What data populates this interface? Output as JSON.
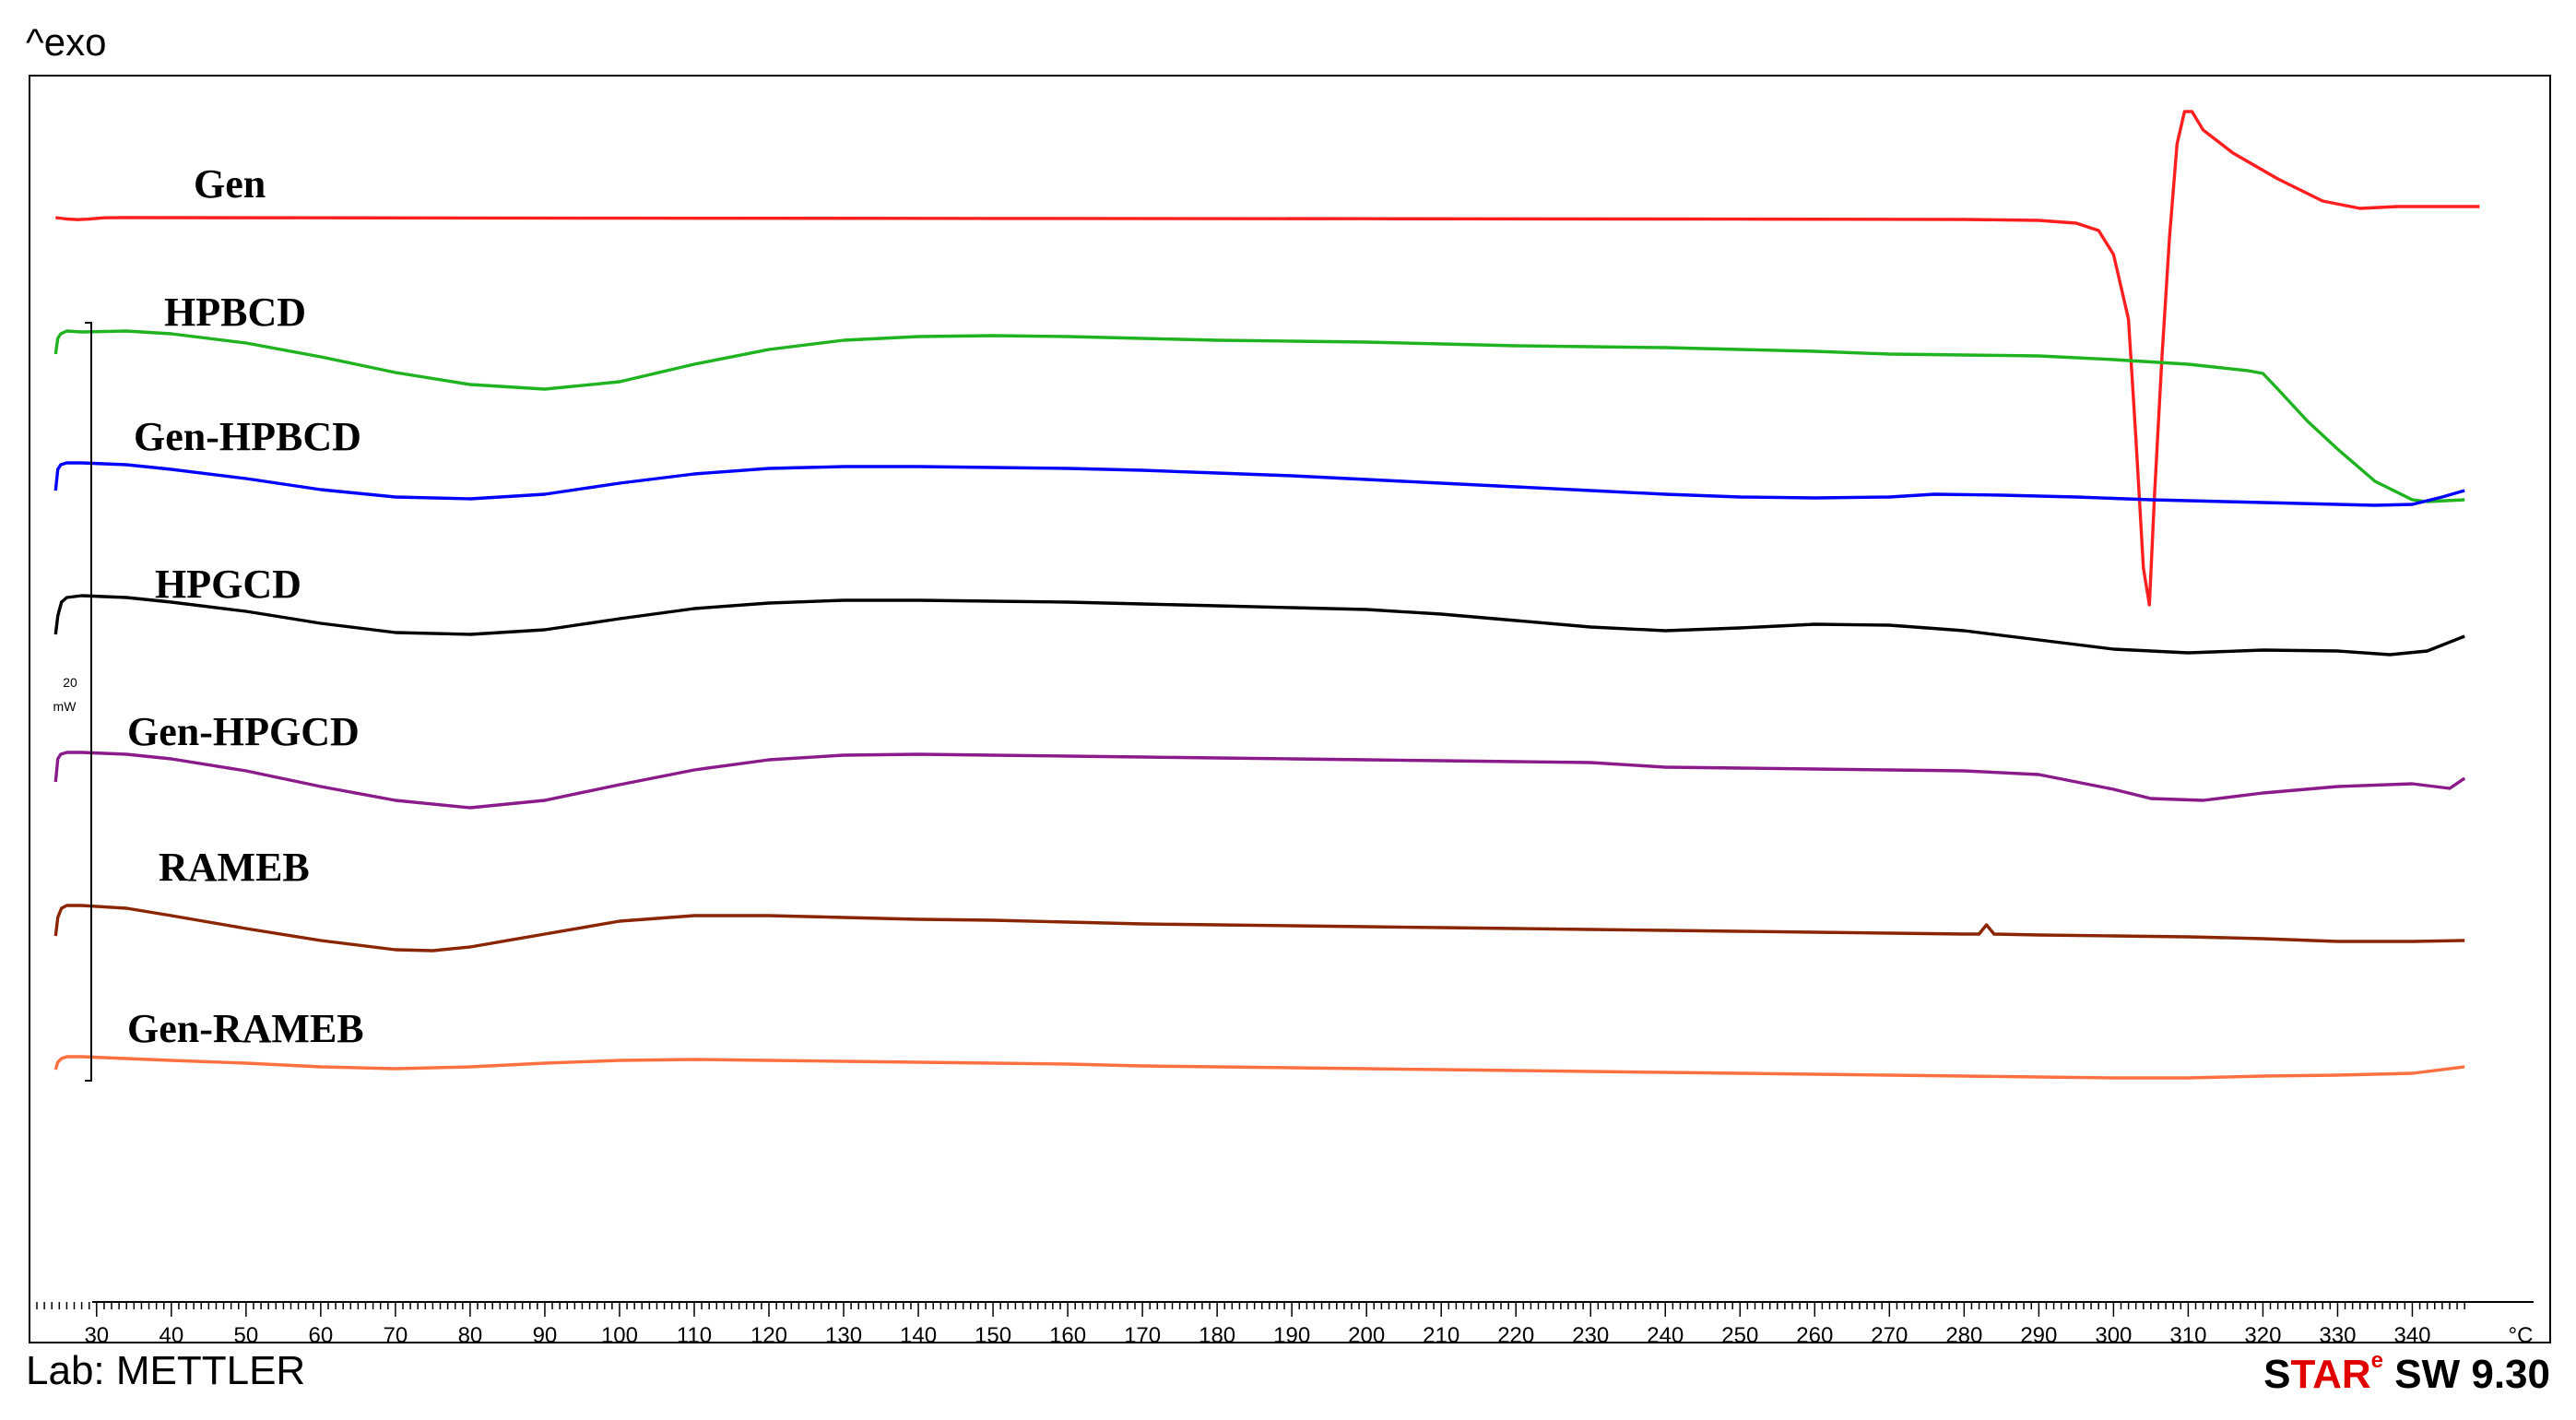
{
  "header": {
    "exo_label": "^exo"
  },
  "footer": {
    "lab_label": "Lab: METTLER",
    "software_prefix": "S",
    "software_red": "TAR",
    "software_sup": "e",
    "software_suffix": " SW 9.30"
  },
  "chart_data": {
    "type": "line",
    "xlabel": "°C",
    "xlim": [
      22,
      355
    ],
    "x_ticks": [
      30,
      40,
      50,
      60,
      70,
      80,
      90,
      100,
      110,
      120,
      130,
      140,
      150,
      160,
      170,
      180,
      190,
      200,
      210,
      220,
      230,
      240,
      250,
      260,
      270,
      280,
      290,
      300,
      310,
      320,
      330,
      340
    ],
    "x_unit_label": "°C",
    "y_scale": {
      "value": "20",
      "unit": "mW"
    },
    "grid": false,
    "legend": "inline labels",
    "series": [
      {
        "name": "Gen",
        "color": "#ff1f1f",
        "offset": 0,
        "points": [
          [
            24.5,
            0
          ],
          [
            26,
            -1.5
          ],
          [
            27.5,
            -2.2
          ],
          [
            29,
            -1.6
          ],
          [
            31,
            -0.2
          ],
          [
            33,
            0
          ],
          [
            60,
            -0.2
          ],
          [
            100,
            -0.6
          ],
          [
            150,
            -0.9
          ],
          [
            200,
            -1.2
          ],
          [
            250,
            -1.6
          ],
          [
            280,
            -2
          ],
          [
            290,
            -3
          ],
          [
            295,
            -6
          ],
          [
            298,
            -14
          ],
          [
            300,
            -40
          ],
          [
            302,
            -110
          ],
          [
            303,
            -240
          ],
          [
            304,
            -380
          ],
          [
            304.8,
            -420
          ],
          [
            305.5,
            -300
          ],
          [
            306.5,
            -150
          ],
          [
            307.5,
            -20
          ],
          [
            308.5,
            80
          ],
          [
            309.5,
            115
          ],
          [
            310.5,
            115
          ],
          [
            312,
            95
          ],
          [
            316,
            70
          ],
          [
            322,
            42
          ],
          [
            328,
            18
          ],
          [
            333,
            10
          ],
          [
            338,
            12
          ],
          [
            345,
            12
          ],
          [
            349,
            12
          ]
        ]
      },
      {
        "name": "HPBCD",
        "color": "#1fb31f",
        "offset": 132,
        "points": [
          [
            24.5,
            -22
          ],
          [
            24.8,
            -5
          ],
          [
            25.2,
            0
          ],
          [
            26,
            3
          ],
          [
            28,
            2
          ],
          [
            34,
            3
          ],
          [
            40,
            0
          ],
          [
            50,
            -10
          ],
          [
            60,
            -25
          ],
          [
            70,
            -42
          ],
          [
            80,
            -55
          ],
          [
            90,
            -60
          ],
          [
            100,
            -52
          ],
          [
            110,
            -33
          ],
          [
            120,
            -17
          ],
          [
            130,
            -7
          ],
          [
            140,
            -3
          ],
          [
            150,
            -2
          ],
          [
            160,
            -3
          ],
          [
            170,
            -5
          ],
          [
            180,
            -7
          ],
          [
            190,
            -8
          ],
          [
            200,
            -9
          ],
          [
            210,
            -11
          ],
          [
            220,
            -13
          ],
          [
            230,
            -14
          ],
          [
            240,
            -15
          ],
          [
            250,
            -17
          ],
          [
            260,
            -19
          ],
          [
            270,
            -22
          ],
          [
            280,
            -23
          ],
          [
            290,
            -24
          ],
          [
            300,
            -28
          ],
          [
            310,
            -33
          ],
          [
            318,
            -40
          ],
          [
            320,
            -43
          ],
          [
            322,
            -60
          ],
          [
            326,
            -95
          ],
          [
            330,
            -125
          ],
          [
            335,
            -160
          ],
          [
            340,
            -180
          ],
          [
            342,
            -182
          ],
          [
            347,
            -180
          ]
        ]
      },
      {
        "name": "Gen-HPBCD",
        "color": "#0000ff",
        "offset": 288,
        "points": [
          [
            24.5,
            -28
          ],
          [
            24.8,
            -5
          ],
          [
            25.2,
            0
          ],
          [
            26,
            2
          ],
          [
            28,
            2
          ],
          [
            34,
            0
          ],
          [
            40,
            -5
          ],
          [
            50,
            -15
          ],
          [
            60,
            -27
          ],
          [
            70,
            -35
          ],
          [
            80,
            -37
          ],
          [
            90,
            -32
          ],
          [
            100,
            -20
          ],
          [
            110,
            -10
          ],
          [
            120,
            -4
          ],
          [
            130,
            -2
          ],
          [
            140,
            -2
          ],
          [
            150,
            -3
          ],
          [
            160,
            -4
          ],
          [
            170,
            -6
          ],
          [
            180,
            -9
          ],
          [
            190,
            -12
          ],
          [
            200,
            -16
          ],
          [
            210,
            -20
          ],
          [
            220,
            -24
          ],
          [
            230,
            -28
          ],
          [
            240,
            -32
          ],
          [
            250,
            -35
          ],
          [
            260,
            -36
          ],
          [
            270,
            -35
          ],
          [
            276,
            -32
          ],
          [
            285,
            -33
          ],
          [
            295,
            -35
          ],
          [
            305,
            -38
          ],
          [
            315,
            -40
          ],
          [
            325,
            -42
          ],
          [
            335,
            -44
          ],
          [
            340,
            -43
          ],
          [
            344,
            -35
          ],
          [
            347,
            -28
          ]
        ]
      },
      {
        "name": "HPGCD",
        "color": "#000000",
        "offset": 425,
        "points": [
          [
            24.5,
            -40
          ],
          [
            24.8,
            -20
          ],
          [
            25.3,
            -5
          ],
          [
            26,
            0
          ],
          [
            28,
            2
          ],
          [
            34,
            0
          ],
          [
            40,
            -5
          ],
          [
            50,
            -15
          ],
          [
            60,
            -28
          ],
          [
            70,
            -38
          ],
          [
            80,
            -40
          ],
          [
            90,
            -35
          ],
          [
            100,
            -23
          ],
          [
            110,
            -12
          ],
          [
            120,
            -6
          ],
          [
            130,
            -3
          ],
          [
            140,
            -3
          ],
          [
            150,
            -4
          ],
          [
            160,
            -5
          ],
          [
            170,
            -7
          ],
          [
            180,
            -9
          ],
          [
            190,
            -11
          ],
          [
            200,
            -13
          ],
          [
            210,
            -18
          ],
          [
            220,
            -25
          ],
          [
            230,
            -32
          ],
          [
            240,
            -36
          ],
          [
            250,
            -33
          ],
          [
            260,
            -29
          ],
          [
            270,
            -30
          ],
          [
            280,
            -36
          ],
          [
            290,
            -46
          ],
          [
            300,
            -56
          ],
          [
            310,
            -60
          ],
          [
            320,
            -57
          ],
          [
            330,
            -58
          ],
          [
            337,
            -62
          ],
          [
            342,
            -58
          ],
          [
            347,
            -42
          ]
        ]
      },
      {
        "name": "Gen-HPGCD",
        "color": "#8b1a8b",
        "offset": 598,
        "points": [
          [
            24.5,
            -30
          ],
          [
            24.8,
            -5
          ],
          [
            25.2,
            0
          ],
          [
            26,
            2
          ],
          [
            28,
            2
          ],
          [
            34,
            0
          ],
          [
            40,
            -5
          ],
          [
            50,
            -18
          ],
          [
            60,
            -35
          ],
          [
            70,
            -50
          ],
          [
            80,
            -58
          ],
          [
            90,
            -50
          ],
          [
            100,
            -33
          ],
          [
            110,
            -17
          ],
          [
            120,
            -6
          ],
          [
            130,
            -1
          ],
          [
            140,
            0
          ],
          [
            150,
            -1
          ],
          [
            160,
            -2
          ],
          [
            170,
            -3
          ],
          [
            180,
            -4
          ],
          [
            190,
            -5
          ],
          [
            200,
            -6
          ],
          [
            210,
            -7
          ],
          [
            220,
            -8
          ],
          [
            230,
            -9
          ],
          [
            240,
            -14
          ],
          [
            250,
            -15
          ],
          [
            260,
            -16
          ],
          [
            270,
            -17
          ],
          [
            280,
            -18
          ],
          [
            290,
            -22
          ],
          [
            300,
            -38
          ],
          [
            305,
            -48
          ],
          [
            312,
            -50
          ],
          [
            320,
            -42
          ],
          [
            330,
            -35
          ],
          [
            340,
            -32
          ],
          [
            345,
            -37
          ],
          [
            347,
            -26
          ]
        ]
      },
      {
        "name": "RAMEB",
        "color": "#8b2500",
        "offset": 790,
        "points": [
          [
            24.5,
            -30
          ],
          [
            24.8,
            -10
          ],
          [
            25.3,
            0
          ],
          [
            26,
            3
          ],
          [
            28,
            3
          ],
          [
            34,
            0
          ],
          [
            40,
            -8
          ],
          [
            50,
            -22
          ],
          [
            60,
            -35
          ],
          [
            70,
            -45
          ],
          [
            75,
            -46
          ],
          [
            80,
            -42
          ],
          [
            90,
            -28
          ],
          [
            100,
            -14
          ],
          [
            110,
            -8
          ],
          [
            120,
            -8
          ],
          [
            130,
            -10
          ],
          [
            140,
            -12
          ],
          [
            150,
            -13
          ],
          [
            160,
            -15
          ],
          [
            170,
            -17
          ],
          [
            180,
            -18
          ],
          [
            190,
            -19
          ],
          [
            200,
            -20
          ],
          [
            210,
            -21
          ],
          [
            220,
            -22
          ],
          [
            230,
            -23
          ],
          [
            240,
            -24
          ],
          [
            250,
            -25
          ],
          [
            260,
            -26
          ],
          [
            270,
            -27
          ],
          [
            280,
            -28
          ],
          [
            282,
            -28
          ],
          [
            283,
            -18
          ],
          [
            284,
            -28
          ],
          [
            290,
            -29
          ],
          [
            300,
            -30
          ],
          [
            310,
            -31
          ],
          [
            320,
            -33
          ],
          [
            330,
            -36
          ],
          [
            340,
            -36
          ],
          [
            347,
            -35
          ]
        ]
      },
      {
        "name": "Gen-RAMEB",
        "color": "#ff7040",
        "offset": 1112,
        "points": [
          [
            24.5,
            -12
          ],
          [
            24.8,
            -4
          ],
          [
            25.3,
            0
          ],
          [
            26,
            2
          ],
          [
            28,
            2
          ],
          [
            34,
            0
          ],
          [
            40,
            -2
          ],
          [
            50,
            -5
          ],
          [
            60,
            -9
          ],
          [
            70,
            -11
          ],
          [
            80,
            -9
          ],
          [
            90,
            -5
          ],
          [
            100,
            -2
          ],
          [
            110,
            -1
          ],
          [
            120,
            -2
          ],
          [
            130,
            -3
          ],
          [
            140,
            -4
          ],
          [
            150,
            -5
          ],
          [
            160,
            -6
          ],
          [
            170,
            -8
          ],
          [
            180,
            -9
          ],
          [
            190,
            -10
          ],
          [
            200,
            -11
          ],
          [
            210,
            -12
          ],
          [
            220,
            -13
          ],
          [
            230,
            -14
          ],
          [
            240,
            -15
          ],
          [
            250,
            -16
          ],
          [
            260,
            -17
          ],
          [
            270,
            -18
          ],
          [
            280,
            -19
          ],
          [
            290,
            -20
          ],
          [
            300,
            -21
          ],
          [
            310,
            -21
          ],
          [
            320,
            -19
          ],
          [
            330,
            -18
          ],
          [
            340,
            -16
          ],
          [
            347,
            -9
          ]
        ]
      }
    ]
  }
}
